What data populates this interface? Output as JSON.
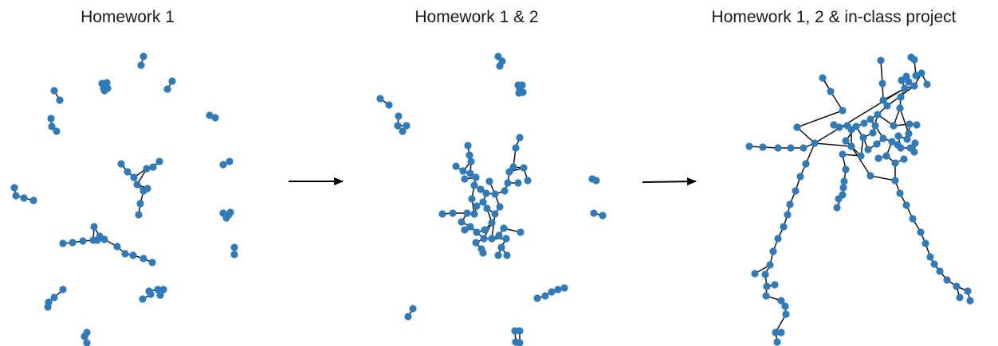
{
  "panels": [
    {
      "title": "Homework 1"
    },
    {
      "title": "Homework 1 & 2"
    },
    {
      "title": "Homework 1, 2 & in-class project"
    }
  ],
  "colors": {
    "node": "#2f7bba",
    "edge": "#111111",
    "arrow": "#000000",
    "background": "#ffffff"
  }
}
